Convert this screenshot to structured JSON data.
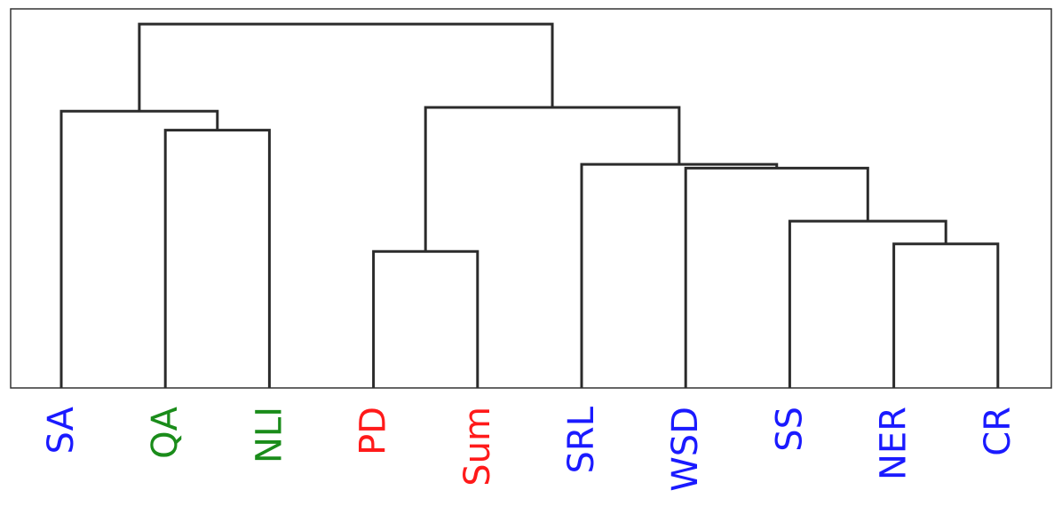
{
  "chart_data": {
    "type": "dendrogram",
    "title": "",
    "xlabel": "",
    "ylabel": "",
    "ylim": [
      0,
      1
    ],
    "grid": false,
    "leaves": [
      {
        "label": "SA",
        "color": "#1a1aff"
      },
      {
        "label": "QA",
        "color": "#1a8c1a"
      },
      {
        "label": "NLI",
        "color": "#1a8c1a"
      },
      {
        "label": "PD",
        "color": "#ff1a1a"
      },
      {
        "label": "Sum",
        "color": "#ff1a1a"
      },
      {
        "label": "SRL",
        "color": "#1a1aff"
      },
      {
        "label": "WSD",
        "color": "#1a1aff"
      },
      {
        "label": "SS",
        "color": "#1a1aff"
      },
      {
        "label": "NER",
        "color": "#1a1aff"
      },
      {
        "label": "CR",
        "color": "#1a1aff"
      }
    ],
    "merges": [
      {
        "id": "m1",
        "children": [
          "L8",
          "L9"
        ],
        "height": 0.38
      },
      {
        "id": "m2",
        "children": [
          "L3",
          "L4"
        ],
        "height": 0.36
      },
      {
        "id": "m3",
        "children": [
          "L7",
          "m1"
        ],
        "height": 0.44
      },
      {
        "id": "m4",
        "children": [
          "L6",
          "m3"
        ],
        "height": 0.58
      },
      {
        "id": "m5",
        "children": [
          "L5",
          "m4"
        ],
        "height": 0.59
      },
      {
        "id": "m6",
        "children": [
          "L1",
          "L2"
        ],
        "height": 0.68
      },
      {
        "id": "m7",
        "children": [
          "L0",
          "m6"
        ],
        "height": 0.73
      },
      {
        "id": "m8",
        "children": [
          "m2",
          "m5"
        ],
        "height": 0.74
      },
      {
        "id": "m9",
        "children": [
          "m7",
          "m8"
        ],
        "height": 0.96
      }
    ]
  }
}
